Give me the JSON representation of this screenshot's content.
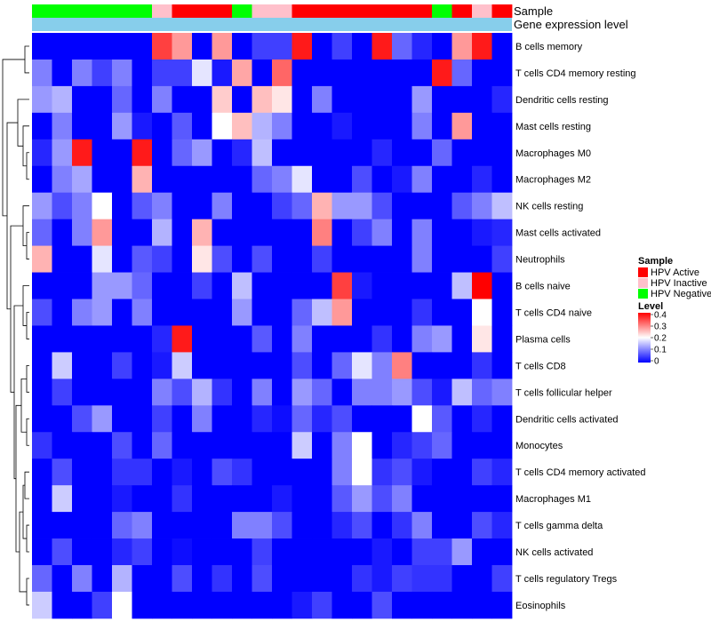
{
  "chart_data": {
    "type": "heatmap",
    "title": "",
    "annotation_labels": [
      "Sample",
      "Gene expression level"
    ],
    "sample_legend": {
      "title": "Sample",
      "entries": [
        {
          "label": "HPV Active",
          "color": "#ff0000"
        },
        {
          "label": "HPV Inactive",
          "color": "#ffc0cb"
        },
        {
          "label": "HPV Negative",
          "color": "#00ff00"
        }
      ]
    },
    "level_legend": {
      "title": "Level",
      "min": 0,
      "max": 0.4,
      "ticks": [
        "0.4",
        "0.3",
        "0.2",
        "0.1",
        "0"
      ],
      "colors": [
        "#0000ff",
        "#ffffff",
        "#ff0000"
      ]
    },
    "expression_color": "#87ceeb",
    "sample_groups": [
      "N",
      "N",
      "N",
      "N",
      "N",
      "N",
      "I",
      "A",
      "A",
      "A",
      "N",
      "I",
      "I",
      "A",
      "A",
      "A",
      "A",
      "A",
      "A",
      "A",
      "N",
      "A",
      "I",
      "A"
    ],
    "rows": [
      "B cells memory",
      "T cells CD4 memory resting",
      "Dendritic cells resting",
      "Mast cells resting",
      "Macrophages M0",
      "Macrophages M2",
      "NK cells resting",
      "Mast cells activated",
      "Neutrophils",
      "B cells naive",
      "T cells CD4 naive",
      "Plasma cells",
      "T cells CD8",
      "T cells follicular helper",
      "Dendritic cells activated",
      "Monocytes",
      "T cells CD4 memory activated",
      "Macrophages M1",
      "T cells gamma delta",
      "NK cells activated",
      "T cells regulatory  Tregs",
      "Eosinophils"
    ],
    "values": [
      [
        0,
        0,
        0,
        0,
        0,
        0,
        0.35,
        0.28,
        0,
        0.28,
        0,
        0.05,
        0.05,
        0.38,
        0,
        0.05,
        0,
        0.38,
        0.08,
        0.03,
        0,
        0.28,
        0.38,
        0
      ],
      [
        0.1,
        0,
        0.1,
        0.05,
        0.1,
        0,
        0.05,
        0.05,
        0.18,
        0.02,
        0.27,
        0,
        0.32,
        0,
        0,
        0,
        0,
        0,
        0,
        0,
        0.38,
        0.08,
        0,
        0
      ],
      [
        0.12,
        0.14,
        0,
        0,
        0.08,
        0,
        0.1,
        0,
        0,
        0.24,
        0,
        0.25,
        0.22,
        0,
        0.1,
        0,
        0,
        0,
        0,
        0.12,
        0,
        0,
        0,
        0.03
      ],
      [
        0,
        0.1,
        0,
        0,
        0.12,
        0.02,
        0,
        0.07,
        0,
        0.2,
        0.25,
        0.14,
        0.1,
        0,
        0,
        0.02,
        0,
        0,
        0,
        0.1,
        0,
        0.28,
        0,
        0
      ],
      [
        0.03,
        0.12,
        0.38,
        0,
        0,
        0.38,
        0,
        0.08,
        0.12,
        0,
        0.03,
        0.15,
        0,
        0,
        0,
        0,
        0,
        0.03,
        0,
        0,
        0.08,
        0,
        0,
        0
      ],
      [
        0,
        0.1,
        0.13,
        0,
        0,
        0.26,
        0,
        0,
        0,
        0,
        0,
        0.08,
        0.1,
        0.18,
        0,
        0,
        0.06,
        0,
        0.02,
        0.1,
        0,
        0,
        0.03,
        0
      ],
      [
        0.12,
        0.06,
        0.1,
        0.2,
        0,
        0.07,
        0.1,
        0,
        0,
        0.1,
        0,
        0,
        0.05,
        0.08,
        0.26,
        0.12,
        0.12,
        0.06,
        0,
        0,
        0,
        0.07,
        0.1,
        0.15
      ],
      [
        0.08,
        0,
        0.1,
        0.28,
        0,
        0,
        0.14,
        0,
        0.26,
        0,
        0,
        0,
        0,
        0,
        0.3,
        0,
        0.05,
        0.1,
        0,
        0.1,
        0,
        0,
        0.02,
        0.03
      ],
      [
        0.26,
        0,
        0,
        0.18,
        0,
        0.07,
        0.05,
        0,
        0.22,
        0.06,
        0,
        0.06,
        0,
        0,
        0.05,
        0,
        0,
        0,
        0,
        0.1,
        0,
        0,
        0,
        0.05
      ],
      [
        0,
        0,
        0,
        0.12,
        0.12,
        0.08,
        0,
        0,
        0.05,
        0,
        0.15,
        0,
        0,
        0,
        0,
        0.35,
        0.02,
        0,
        0,
        0,
        0,
        0.15,
        0.4,
        0
      ],
      [
        0.06,
        0,
        0.1,
        0.12,
        0,
        0.1,
        0,
        0,
        0,
        0,
        0.12,
        0,
        0,
        0.08,
        0.15,
        0.28,
        0,
        0,
        0,
        0.04,
        0,
        0,
        0.2,
        0
      ],
      [
        0,
        0,
        0,
        0,
        0,
        0,
        0.03,
        0.38,
        0,
        0,
        0,
        0.07,
        0,
        0.1,
        0,
        0,
        0,
        0.04,
        0,
        0.1,
        0.12,
        0,
        0.22,
        0
      ],
      [
        0,
        0.16,
        0,
        0,
        0.05,
        0,
        0.02,
        0.16,
        0,
        0,
        0,
        0,
        0,
        0.06,
        0,
        0.08,
        0.18,
        0.1,
        0.3,
        0,
        0,
        0,
        0.04,
        0
      ],
      [
        0,
        0.05,
        0,
        0,
        0,
        0,
        0.1,
        0.06,
        0.14,
        0.04,
        0,
        0.1,
        0,
        0.12,
        0.08,
        0,
        0.1,
        0.1,
        0.12,
        0.06,
        0.02,
        0.15,
        0.08,
        0.1
      ],
      [
        0,
        0,
        0.06,
        0.12,
        0,
        0,
        0.05,
        0,
        0.1,
        0,
        0,
        0.03,
        0.01,
        0.08,
        0.03,
        0.06,
        0,
        0,
        0,
        0.2,
        0.07,
        0,
        0.03,
        0
      ],
      [
        0.04,
        0,
        0,
        0,
        0.06,
        0,
        0.08,
        0,
        0,
        0,
        0,
        0,
        0,
        0.16,
        0,
        0.1,
        0.2,
        0,
        0.03,
        0.05,
        0.08,
        0,
        0,
        0
      ],
      [
        0,
        0.06,
        0,
        0,
        0.04,
        0.04,
        0,
        0.02,
        0,
        0.06,
        0.04,
        0,
        0,
        0,
        0,
        0.1,
        0.2,
        0.04,
        0.06,
        0.02,
        0,
        0,
        0.05,
        0.03
      ],
      [
        0,
        0.16,
        0,
        0,
        0.02,
        0,
        0,
        0.04,
        0,
        0,
        0,
        0,
        0.02,
        0,
        0,
        0.07,
        0.12,
        0.06,
        0.1,
        0,
        0,
        0,
        0,
        0
      ],
      [
        0,
        0,
        0,
        0,
        0.08,
        0.1,
        0,
        0,
        0,
        0,
        0.1,
        0.1,
        0.06,
        0,
        0,
        0.03,
        0.06,
        0,
        0.04,
        0.1,
        0,
        0,
        0.06,
        0.03
      ],
      [
        0,
        0.06,
        0,
        0,
        0.03,
        0.05,
        0,
        0.01,
        0,
        0,
        0,
        0.05,
        0,
        0,
        0,
        0,
        0,
        0.02,
        0,
        0.05,
        0.05,
        0.12,
        0,
        0
      ],
      [
        0.08,
        0,
        0.1,
        0,
        0.14,
        0,
        0,
        0.06,
        0,
        0.04,
        0,
        0.06,
        0,
        0,
        0,
        0,
        0.04,
        0.02,
        0.05,
        0.04,
        0.04,
        0,
        0,
        0.05
      ],
      [
        0.16,
        0,
        0,
        0.05,
        0.2,
        0,
        0,
        0,
        0,
        0,
        0,
        0,
        0,
        0.02,
        0.05,
        0,
        0,
        0.06,
        0,
        0,
        0,
        0,
        0,
        0
      ]
    ]
  }
}
